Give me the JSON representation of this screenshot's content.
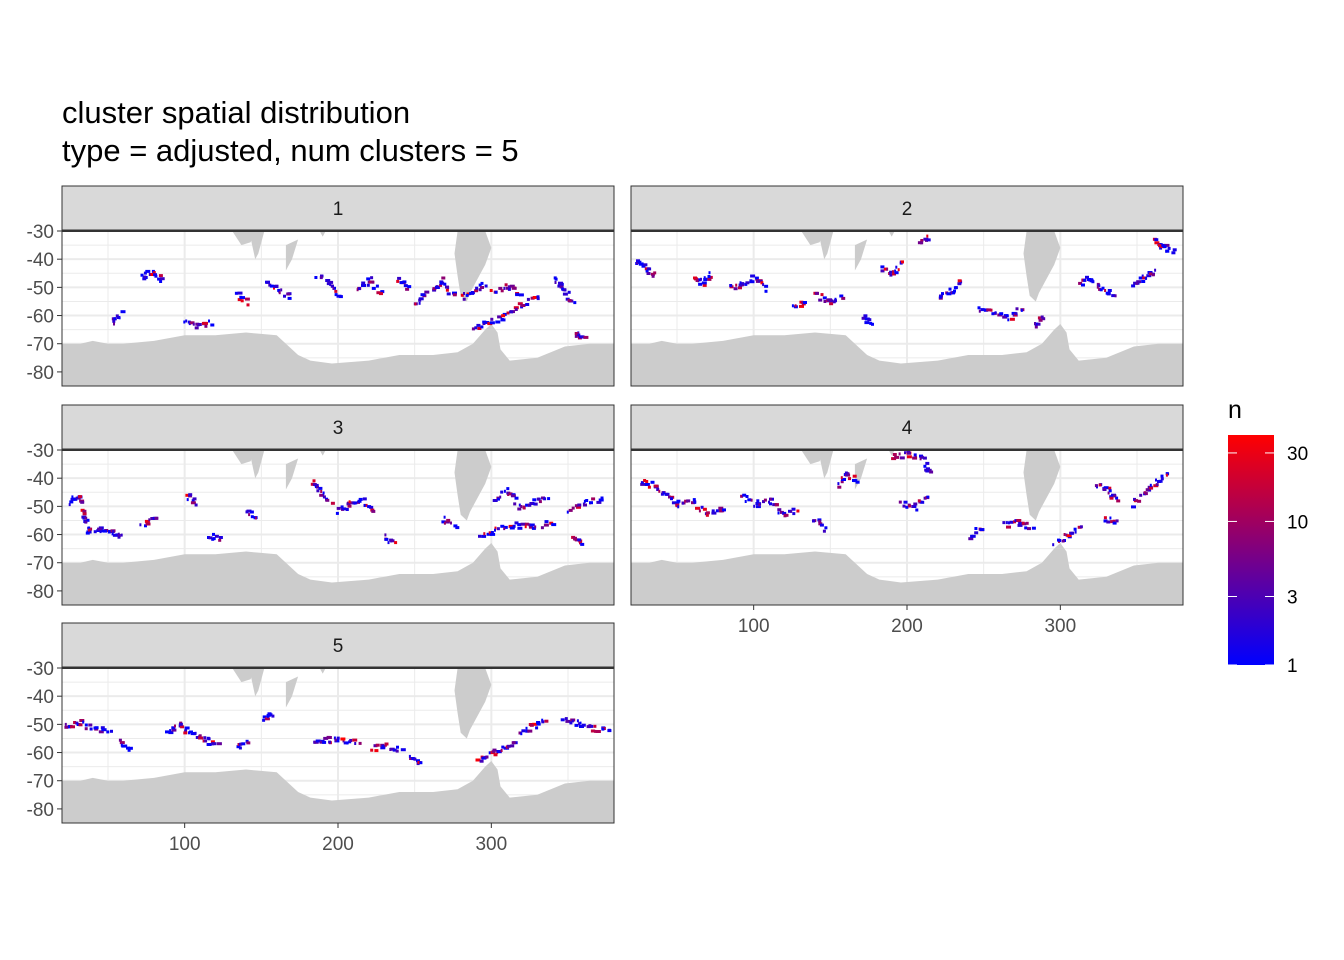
{
  "chart_data": {
    "type": "heatmap",
    "title": "cluster spatial distribution",
    "subtitle": "type = adjusted, num clusters = 5",
    "xlabel": "",
    "ylabel": "",
    "xlim": [
      20,
      380
    ],
    "ylim": [
      -85,
      -30
    ],
    "x_ticks": [
      "100",
      "200",
      "300"
    ],
    "y_ticks": [
      "-30",
      "-40",
      "-50",
      "-60",
      "-70",
      "-80"
    ],
    "grid": true,
    "land_color": "#cccccc",
    "panel_background": "#ffffff",
    "strip_background": "#d9d9d9",
    "legend": {
      "title": "n",
      "scale": "log",
      "range": [
        1,
        40
      ],
      "ticks": [
        "1",
        "3",
        "10",
        "30"
      ],
      "tick_values": [
        1,
        3,
        10,
        30
      ],
      "colors": [
        "#0000ff",
        "#ff0000"
      ],
      "placement": "right"
    },
    "facets": [
      {
        "label": "1",
        "segments": [
          [
            [
              70,
              -46
            ],
            [
              78,
              -44
            ],
            [
              84,
              -47
            ]
          ],
          [
            [
              152,
              -48
            ],
            [
              160,
              -50
            ],
            [
              168,
              -53
            ]
          ],
          [
            [
              186,
              -45
            ],
            [
              194,
              -49
            ],
            [
              200,
              -53
            ]
          ],
          [
            [
              212,
              -50
            ],
            [
              220,
              -47
            ],
            [
              228,
              -52
            ]
          ],
          [
            [
              262,
              -50
            ],
            [
              268,
              -47
            ],
            [
              274,
              -53
            ]
          ],
          [
            [
              280,
              -53
            ],
            [
              288,
              -51
            ],
            [
              295,
              -48
            ]
          ],
          [
            [
              286,
              -64
            ],
            [
              296,
              -62
            ],
            [
              306,
              -60
            ],
            [
              318,
              -56
            ],
            [
              330,
              -52
            ]
          ],
          [
            [
              100,
              -61
            ],
            [
              108,
              -63
            ],
            [
              116,
              -62
            ]
          ],
          [
            [
              52,
              -62
            ],
            [
              58,
              -59
            ]
          ],
          [
            [
              250,
              -55
            ],
            [
              256,
              -52
            ]
          ],
          [
            [
              300,
              -51
            ],
            [
              310,
              -49
            ],
            [
              318,
              -52
            ]
          ],
          [
            [
              340,
              -46
            ],
            [
              346,
              -50
            ],
            [
              352,
              -55
            ]
          ],
          [
            [
              354,
              -66
            ],
            [
              360,
              -68
            ]
          ],
          [
            [
              132,
              -52
            ],
            [
              140,
              -55
            ]
          ],
          [
            [
              238,
              -47
            ],
            [
              244,
              -50
            ]
          ]
        ]
      },
      {
        "label": "2",
        "segments": [
          [
            [
              22,
              -40
            ],
            [
              28,
              -42
            ],
            [
              34,
              -45
            ]
          ],
          [
            [
              60,
              -46
            ],
            [
              66,
              -48
            ],
            [
              72,
              -45
            ]
          ],
          [
            [
              84,
              -50
            ],
            [
              92,
              -48
            ],
            [
              100,
              -46
            ],
            [
              108,
              -50
            ]
          ],
          [
            [
              140,
              -52
            ],
            [
              148,
              -55
            ],
            [
              156,
              -53
            ]
          ],
          [
            [
              182,
              -43
            ],
            [
              190,
              -45
            ],
            [
              196,
              -40
            ]
          ],
          [
            [
              206,
              -34
            ],
            [
              214,
              -32
            ]
          ],
          [
            [
              220,
              -53
            ],
            [
              228,
              -51
            ],
            [
              234,
              -48
            ]
          ],
          [
            [
              246,
              -57
            ],
            [
              256,
              -58
            ],
            [
              266,
              -60
            ],
            [
              274,
              -57
            ]
          ],
          [
            [
              282,
              -63
            ],
            [
              288,
              -60
            ]
          ],
          [
            [
              312,
              -48
            ],
            [
              318,
              -46
            ],
            [
              326,
              -50
            ],
            [
              334,
              -52
            ]
          ],
          [
            [
              360,
              -33
            ],
            [
              366,
              -35
            ],
            [
              372,
              -37
            ]
          ],
          [
            [
              346,
              -49
            ],
            [
              354,
              -46
            ],
            [
              362,
              -44
            ]
          ],
          [
            [
              126,
              -57
            ],
            [
              132,
              -54
            ]
          ],
          [
            [
              170,
              -60
            ],
            [
              176,
              -62
            ]
          ]
        ]
      },
      {
        "label": "3",
        "segments": [
          [
            [
              24,
              -48
            ],
            [
              30,
              -46
            ],
            [
              34,
              -53
            ],
            [
              36,
              -58
            ]
          ],
          [
            [
              36,
              -58
            ],
            [
              44,
              -58
            ],
            [
              52,
              -59
            ],
            [
              58,
              -60
            ]
          ],
          [
            [
              72,
              -56
            ],
            [
              80,
              -53
            ]
          ],
          [
            [
              116,
              -60
            ],
            [
              122,
              -61
            ]
          ],
          [
            [
              140,
              -51
            ],
            [
              146,
              -54
            ]
          ],
          [
            [
              182,
              -41
            ],
            [
              188,
              -44
            ],
            [
              194,
              -48
            ]
          ],
          [
            [
              198,
              -51
            ],
            [
              206,
              -49
            ],
            [
              214,
              -47
            ],
            [
              222,
              -52
            ]
          ],
          [
            [
              266,
              -54
            ],
            [
              276,
              -56
            ]
          ],
          [
            [
              302,
              -47
            ],
            [
              310,
              -44
            ],
            [
              318,
              -50
            ],
            [
              326,
              -48
            ],
            [
              336,
              -46
            ]
          ],
          [
            [
              292,
              -61
            ],
            [
              302,
              -58
            ],
            [
              314,
              -56
            ],
            [
              326,
              -57
            ],
            [
              338,
              -55
            ]
          ],
          [
            [
              350,
              -52
            ],
            [
              360,
              -48
            ],
            [
              370,
              -47
            ]
          ],
          [
            [
              352,
              -60
            ],
            [
              358,
              -62
            ]
          ],
          [
            [
              230,
              -60
            ],
            [
              236,
              -63
            ]
          ],
          [
            [
              100,
              -45
            ],
            [
              106,
              -48
            ]
          ]
        ]
      },
      {
        "label": "4",
        "segments": [
          [
            [
              26,
              -41
            ],
            [
              34,
              -42
            ],
            [
              42,
              -46
            ],
            [
              50,
              -49
            ]
          ],
          [
            [
              50,
              -49
            ],
            [
              60,
              -48
            ],
            [
              70,
              -52
            ],
            [
              80,
              -50
            ]
          ],
          [
            [
              92,
              -46
            ],
            [
              100,
              -49
            ],
            [
              110,
              -47
            ],
            [
              118,
              -52
            ],
            [
              128,
              -51
            ]
          ],
          [
            [
              154,
              -42
            ],
            [
              160,
              -38
            ],
            [
              166,
              -41
            ]
          ],
          [
            [
              190,
              -32
            ],
            [
              200,
              -31
            ],
            [
              210,
              -33
            ],
            [
              214,
              -38
            ]
          ],
          [
            [
              196,
              -48
            ],
            [
              204,
              -50
            ],
            [
              212,
              -46
            ]
          ],
          [
            [
              138,
              -54
            ],
            [
              146,
              -58
            ]
          ],
          [
            [
              262,
              -56
            ],
            [
              272,
              -55
            ],
            [
              280,
              -57
            ]
          ],
          [
            [
              296,
              -63
            ],
            [
              304,
              -60
            ],
            [
              312,
              -57
            ]
          ],
          [
            [
              322,
              -42
            ],
            [
              330,
              -44
            ],
            [
              336,
              -47
            ]
          ],
          [
            [
              346,
              -49
            ],
            [
              354,
              -45
            ],
            [
              362,
              -41
            ],
            [
              370,
              -38
            ]
          ],
          [
            [
              328,
              -54
            ],
            [
              336,
              -55
            ]
          ],
          [
            [
              240,
              -60
            ],
            [
              248,
              -57
            ]
          ]
        ]
      },
      {
        "label": "5",
        "segments": [
          [
            [
              22,
              -50
            ],
            [
              30,
              -49
            ],
            [
              40,
              -51
            ],
            [
              50,
              -52
            ]
          ],
          [
            [
              56,
              -56
            ],
            [
              64,
              -58
            ]
          ],
          [
            [
              88,
              -52
            ],
            [
              96,
              -50
            ],
            [
              104,
              -53
            ],
            [
              112,
              -55
            ],
            [
              120,
              -57
            ]
          ],
          [
            [
              134,
              -58
            ],
            [
              140,
              -56
            ]
          ],
          [
            [
              184,
              -56
            ],
            [
              192,
              -55
            ],
            [
              202,
              -55
            ],
            [
              212,
              -56
            ]
          ],
          [
            [
              222,
              -58
            ],
            [
              230,
              -57
            ],
            [
              240,
              -59
            ]
          ],
          [
            [
              290,
              -63
            ],
            [
              298,
              -60
            ],
            [
              306,
              -58
            ],
            [
              314,
              -56
            ]
          ],
          [
            [
              318,
              -53
            ],
            [
              326,
              -50
            ],
            [
              334,
              -48
            ]
          ],
          [
            [
              346,
              -48
            ],
            [
              356,
              -49
            ],
            [
              366,
              -51
            ],
            [
              376,
              -52
            ]
          ],
          [
            [
              150,
              -48
            ],
            [
              156,
              -46
            ]
          ],
          [
            [
              246,
              -61
            ],
            [
              252,
              -63
            ]
          ]
        ]
      }
    ]
  }
}
